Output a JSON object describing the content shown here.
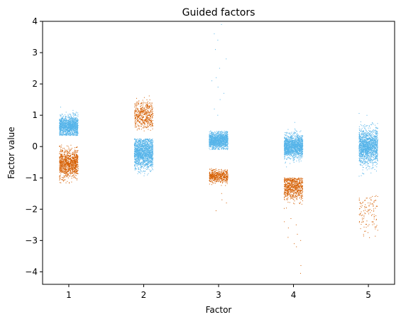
{
  "chart_data": {
    "type": "scatter",
    "title": "Guided factors",
    "xlabel": "Factor",
    "ylabel": "Factor value",
    "xlim": [
      0.65,
      5.35
    ],
    "ylim": [
      -4.4,
      4.0
    ],
    "x_ticks": [
      1,
      2,
      3,
      4,
      5
    ],
    "y_ticks": [
      -4,
      -3,
      -2,
      -1,
      0,
      1,
      2,
      3,
      4
    ],
    "y_tick_labels": [
      "−4",
      "−3",
      "−2",
      "−1",
      "0",
      "1",
      "2",
      "3",
      "4"
    ],
    "grid": false,
    "jitter_width": 0.25,
    "colors": {
      "blue": "#56B4E9",
      "orange": "#D55E00"
    },
    "series": [
      {
        "color": "blue",
        "clusters": [
          {
            "factor": 1,
            "center": 0.65,
            "spread": 0.16,
            "min": 0.35,
            "max": 1.6,
            "points": 1300,
            "tail": []
          },
          {
            "factor": 2,
            "center": -0.2,
            "spread": 0.25,
            "min": -1.65,
            "max": 0.25,
            "points": 1500,
            "tail": []
          },
          {
            "factor": 3,
            "center": 0.2,
            "spread": 0.13,
            "min": -0.1,
            "max": 0.5,
            "points": 1300,
            "tail": [
              1.0,
              1.2,
              1.5,
              1.9,
              2.1,
              2.5,
              2.8,
              3.1,
              3.4,
              3.6,
              3.9,
              2.2,
              1.7
            ]
          },
          {
            "factor": 4,
            "center": 0.0,
            "spread": 0.18,
            "min": -0.7,
            "max": 0.85,
            "points": 1500,
            "tail": []
          },
          {
            "factor": 5,
            "center": 0.0,
            "spread": 0.28,
            "min": -1.0,
            "max": 1.4,
            "points": 1500,
            "tail": []
          }
        ]
      },
      {
        "color": "orange",
        "clusters": [
          {
            "factor": 1,
            "center": -0.55,
            "spread": 0.22,
            "min": -1.2,
            "max": 0.05,
            "points": 1000,
            "tail": []
          },
          {
            "factor": 2,
            "center": 1.0,
            "spread": 0.22,
            "min": 0.5,
            "max": 1.7,
            "points": 500,
            "tail": []
          },
          {
            "factor": 3,
            "center": -0.95,
            "spread": 0.1,
            "min": -1.25,
            "max": -0.7,
            "points": 500,
            "tail": [
              -1.5,
              -1.7,
              -2.05,
              -1.8
            ]
          },
          {
            "factor": 4,
            "center": -1.3,
            "spread": 0.2,
            "min": -2.2,
            "max": -1.0,
            "points": 700,
            "tail": [
              -2.3,
              -2.5,
              -2.6,
              -2.8,
              -3.0,
              -3.1,
              -3.2,
              -3.8,
              -4.05,
              -2.9,
              -2.4
            ]
          },
          {
            "factor": 5,
            "center": -2.1,
            "spread": 0.35,
            "min": -3.0,
            "max": -1.55,
            "points": 120,
            "tail": []
          }
        ]
      }
    ]
  }
}
